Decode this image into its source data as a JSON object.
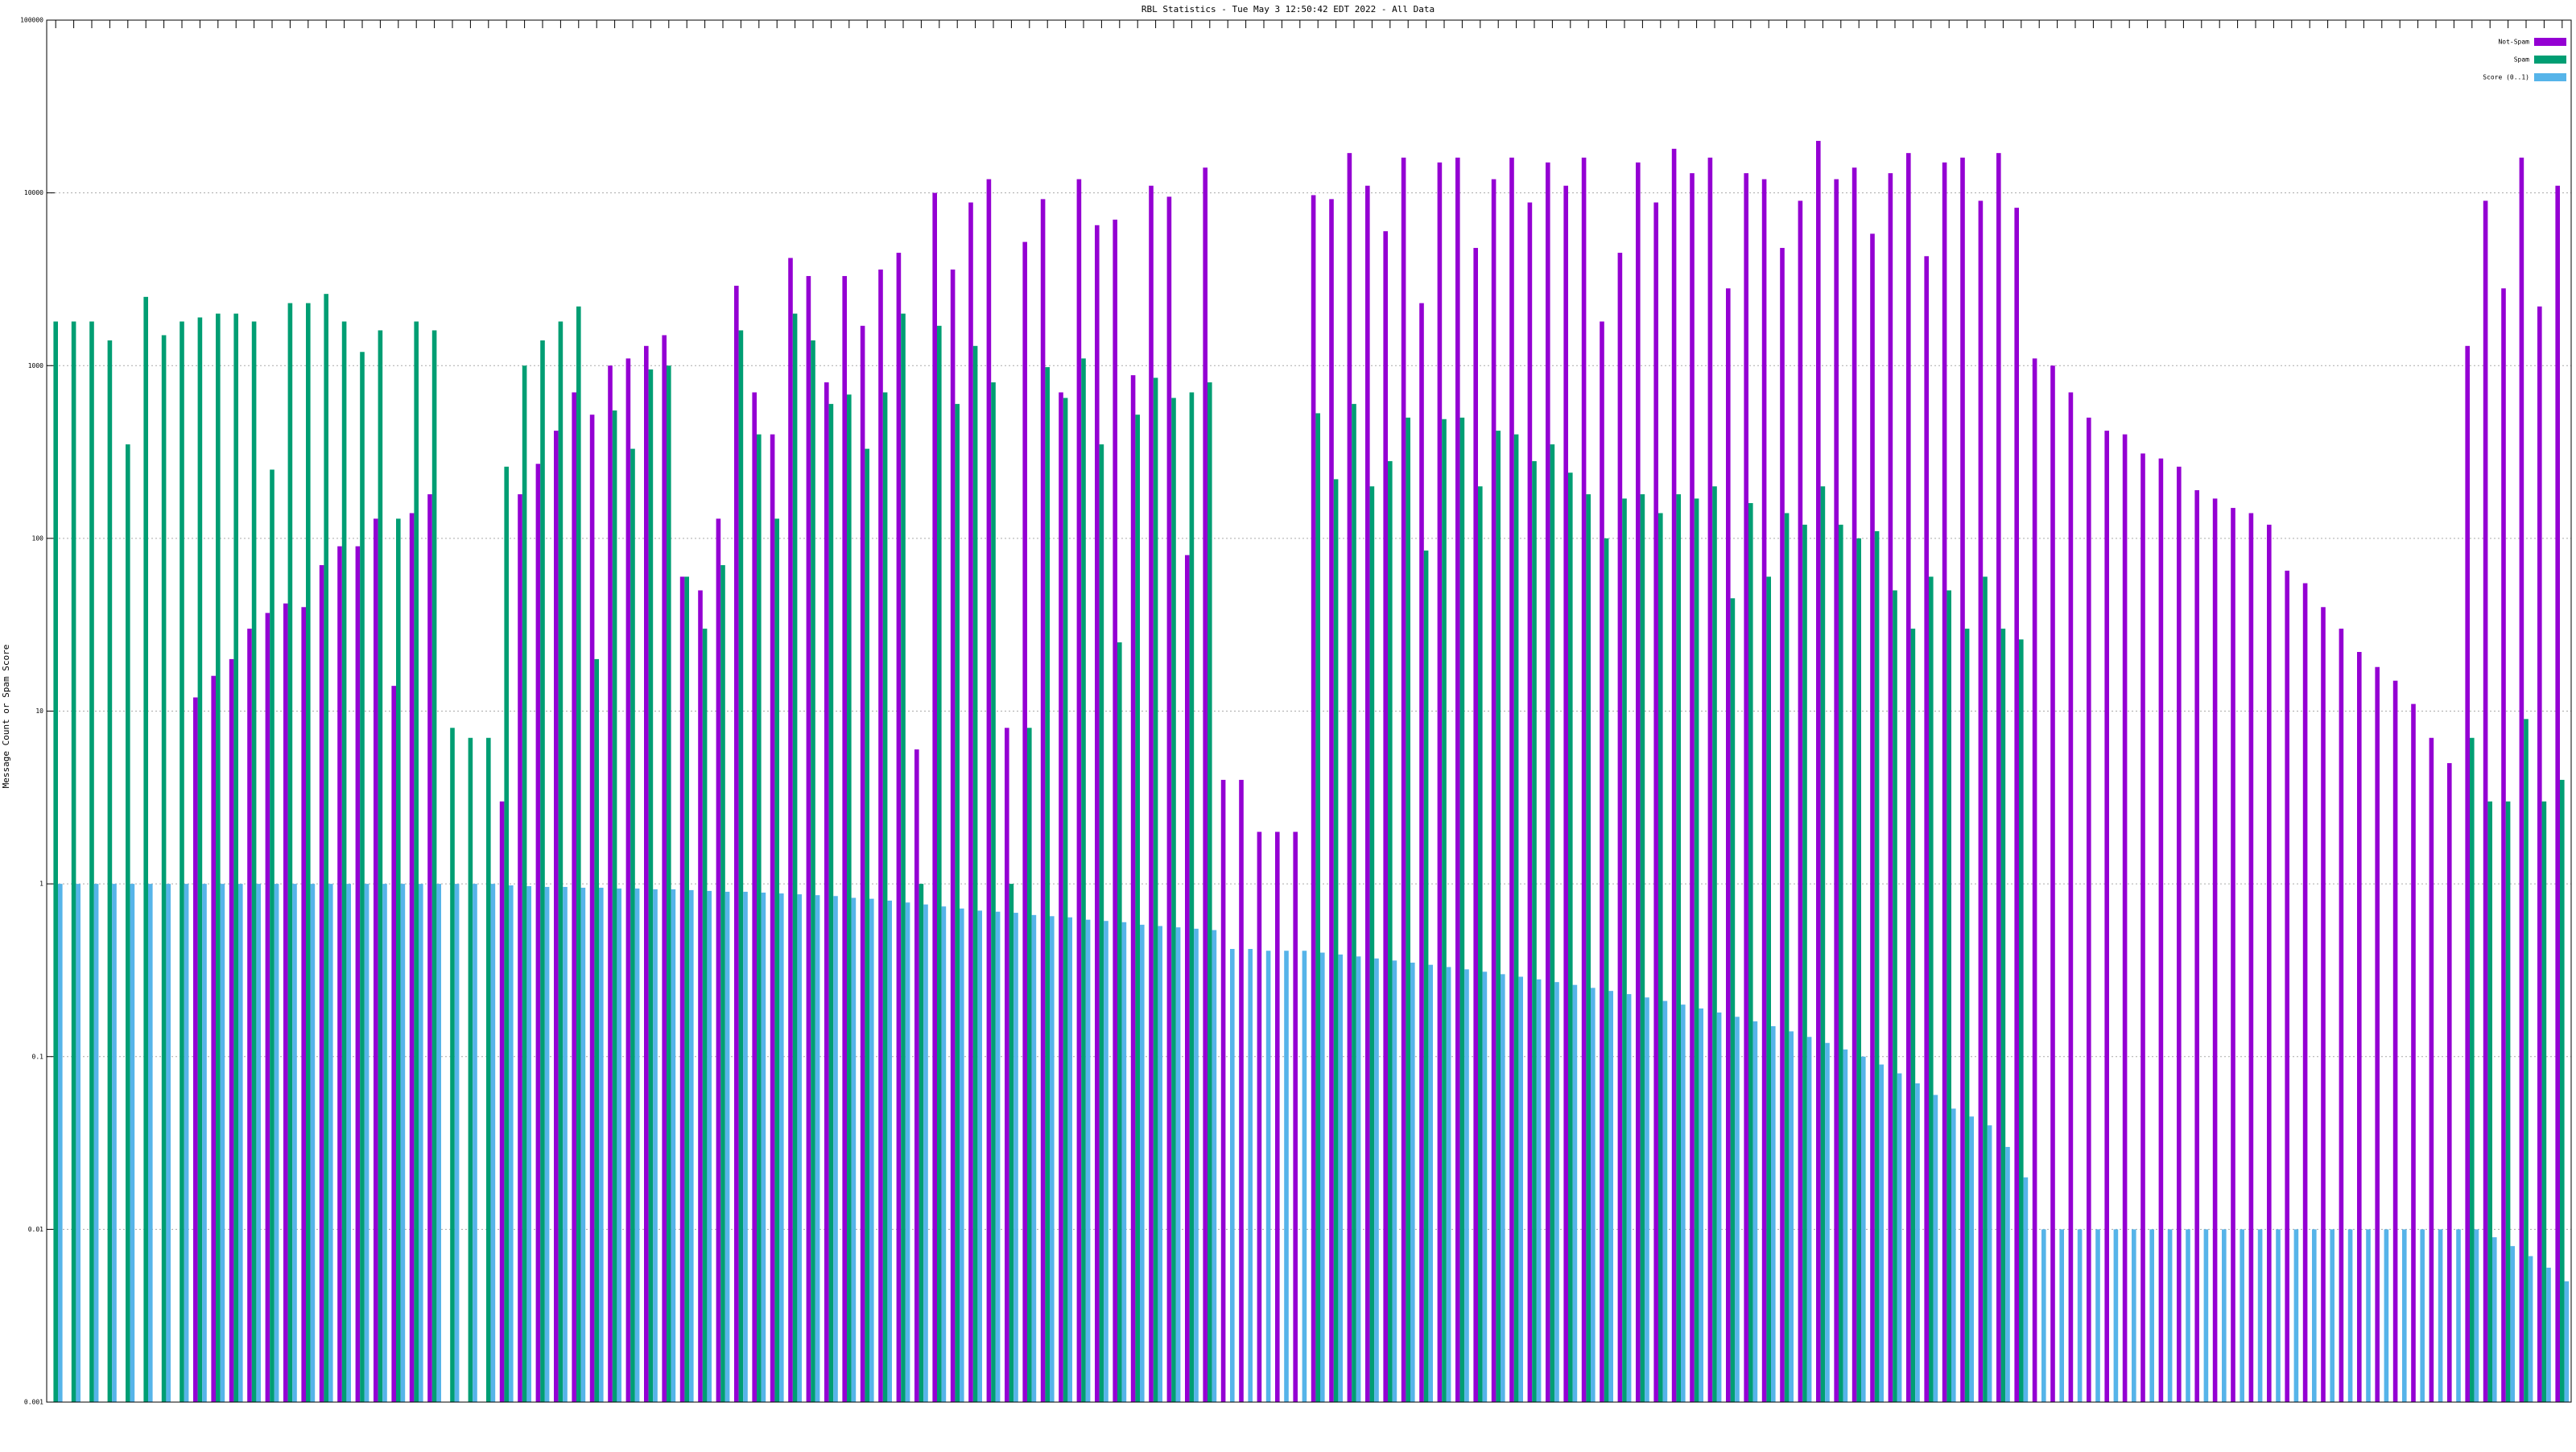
{
  "chart_data": {
    "type": "bar",
    "log": true,
    "grid": true,
    "legend": "top-right",
    "title": "RBL Statistics - Tue May  3 12:50:42 EDT 2022 - All Data",
    "y_label": "Message Count or Spam Score",
    "ylim": [
      0.001,
      100000
    ],
    "yticks": [
      0.001,
      0.01,
      0.1,
      1,
      10,
      100,
      1000,
      10000,
      100000
    ],
    "categories": [
      null,
      null,
      null,
      null,
      null,
      null,
      null,
      null,
      null,
      null,
      null,
      null,
      null,
      null,
      null,
      null,
      null,
      null,
      null,
      null,
      null,
      null,
      null,
      null,
      null,
      null,
      null,
      null,
      null,
      null,
      null,
      null,
      null,
      null,
      null,
      null,
      null,
      null,
      null,
      null,
      null,
      null,
      null,
      null,
      null,
      null,
      null,
      null,
      null,
      null,
      null,
      null,
      null,
      null,
      null,
      null,
      null,
      null,
      null,
      null,
      null,
      null,
      null,
      null,
      null,
      null,
      null,
      null,
      null,
      null,
      null,
      null,
      null,
      null,
      null,
      null,
      null,
      null,
      null,
      null,
      null,
      null,
      null,
      null,
      null,
      null,
      null,
      null,
      null,
      null,
      null,
      null,
      null,
      null,
      null,
      null,
      null,
      null,
      null,
      null,
      null,
      null,
      null,
      null,
      null,
      null,
      null,
      null,
      null,
      null,
      null,
      null,
      null,
      null,
      null,
      null,
      null,
      null,
      null,
      null,
      null,
      null,
      null,
      null,
      null,
      null,
      null,
      null,
      null,
      null,
      null,
      null,
      null,
      null,
      null,
      null,
      null,
      null,
      null,
      null
    ],
    "series": [
      {
        "name": "Not-Spam",
        "color": "#9400d3",
        "values": [
          null,
          null,
          null,
          null,
          null,
          null,
          null,
          null,
          12,
          16,
          20,
          30,
          37,
          42,
          40,
          70,
          90,
          90,
          130,
          14,
          140,
          180,
          null,
          null,
          null,
          3,
          180,
          270,
          420,
          700,
          520,
          1000,
          1100,
          1300,
          1500,
          60,
          50,
          130,
          2900,
          700,
          400,
          4200,
          3300,
          800,
          3300,
          1700,
          3600,
          4500,
          6,
          10000,
          3600,
          8800,
          12000,
          8,
          5200,
          9200,
          700,
          12000,
          6500,
          7000,
          880,
          11000,
          9500,
          80,
          14000,
          4,
          4,
          2,
          2,
          2,
          9700,
          9200,
          17000,
          11000,
          6000,
          16000,
          2300,
          15000,
          16000,
          4800,
          12000,
          16000,
          8800,
          15000,
          11000,
          16000,
          1800,
          4500,
          15000,
          8800,
          18000,
          13000,
          16000,
          2800,
          13000,
          12000,
          4800,
          9000,
          20000,
          12000,
          14000,
          5800,
          13000,
          17000,
          4300,
          15000,
          16000,
          9000,
          17000,
          8200,
          1100,
          1000,
          700,
          500,
          420,
          400,
          310,
          290,
          260,
          190,
          170,
          150,
          140,
          120,
          65,
          55,
          40,
          30,
          22,
          18,
          15,
          11,
          7,
          5,
          1300,
          9000,
          2800,
          16000,
          2200,
          11000
        ]
      },
      {
        "name": "Spam",
        "color": "#009e73",
        "values": [
          1800,
          1800,
          1800,
          1400,
          350,
          2500,
          1500,
          1800,
          1900,
          2000,
          2000,
          1800,
          250,
          2300,
          2300,
          2600,
          1800,
          1200,
          1600,
          130,
          1800,
          1600,
          8,
          7,
          7,
          260,
          1000,
          1400,
          1800,
          2200,
          20,
          550,
          330,
          950,
          1000,
          60,
          30,
          70,
          1600,
          400,
          130,
          2000,
          1400,
          600,
          680,
          330,
          700,
          2000,
          1,
          1700,
          600,
          1300,
          800,
          1,
          8,
          980,
          650,
          1100,
          350,
          25,
          520,
          850,
          650,
          700,
          800,
          null,
          null,
          null,
          null,
          null,
          530,
          220,
          600,
          200,
          280,
          500,
          85,
          490,
          500,
          200,
          420,
          400,
          280,
          350,
          240,
          180,
          100,
          170,
          180,
          140,
          180,
          170,
          200,
          45,
          160,
          60,
          140,
          120,
          200,
          120,
          100,
          110,
          50,
          30,
          60,
          50,
          30,
          60,
          30,
          26,
          null,
          null,
          null,
          null,
          null,
          null,
          null,
          null,
          null,
          null,
          null,
          null,
          null,
          null,
          null,
          null,
          null,
          null,
          null,
          null,
          null,
          null,
          null,
          null,
          7,
          3,
          3,
          9,
          3,
          4
        ]
      },
      {
        "name": "Score (0..1)",
        "color": "#56b4e9",
        "values": [
          1,
          1,
          1,
          1,
          1,
          1,
          1,
          1,
          1,
          1,
          1,
          1,
          1,
          1,
          1,
          1,
          1,
          1,
          1,
          1,
          1,
          1,
          1,
          1,
          1,
          0.98,
          0.97,
          0.96,
          0.96,
          0.95,
          0.95,
          0.94,
          0.94,
          0.93,
          0.93,
          0.92,
          0.91,
          0.9,
          0.9,
          0.89,
          0.88,
          0.87,
          0.86,
          0.85,
          0.83,
          0.82,
          0.8,
          0.78,
          0.76,
          0.74,
          0.72,
          0.7,
          0.69,
          0.68,
          0.66,
          0.65,
          0.64,
          0.62,
          0.61,
          0.6,
          0.58,
          0.57,
          0.56,
          0.55,
          0.54,
          0.42,
          0.42,
          0.41,
          0.41,
          0.41,
          0.4,
          0.39,
          0.38,
          0.37,
          0.36,
          0.35,
          0.34,
          0.33,
          0.32,
          0.31,
          0.3,
          0.29,
          0.28,
          0.27,
          0.26,
          0.25,
          0.24,
          0.23,
          0.22,
          0.21,
          0.2,
          0.19,
          0.18,
          0.17,
          0.16,
          0.15,
          0.14,
          0.13,
          0.12,
          0.11,
          0.1,
          0.09,
          0.08,
          0.07,
          0.06,
          0.05,
          0.045,
          0.04,
          0.03,
          0.02,
          0.01,
          0.01,
          0.01,
          0.01,
          0.01,
          0.01,
          0.01,
          0.01,
          0.01,
          0.01,
          0.01,
          0.01,
          0.01,
          0.01,
          0.01,
          0.01,
          0.01,
          0.01,
          0.01,
          0.01,
          0.01,
          0.01,
          0.01,
          0.01,
          0.01,
          0.009,
          0.008,
          0.007,
          0.006,
          0.005
        ]
      }
    ]
  }
}
